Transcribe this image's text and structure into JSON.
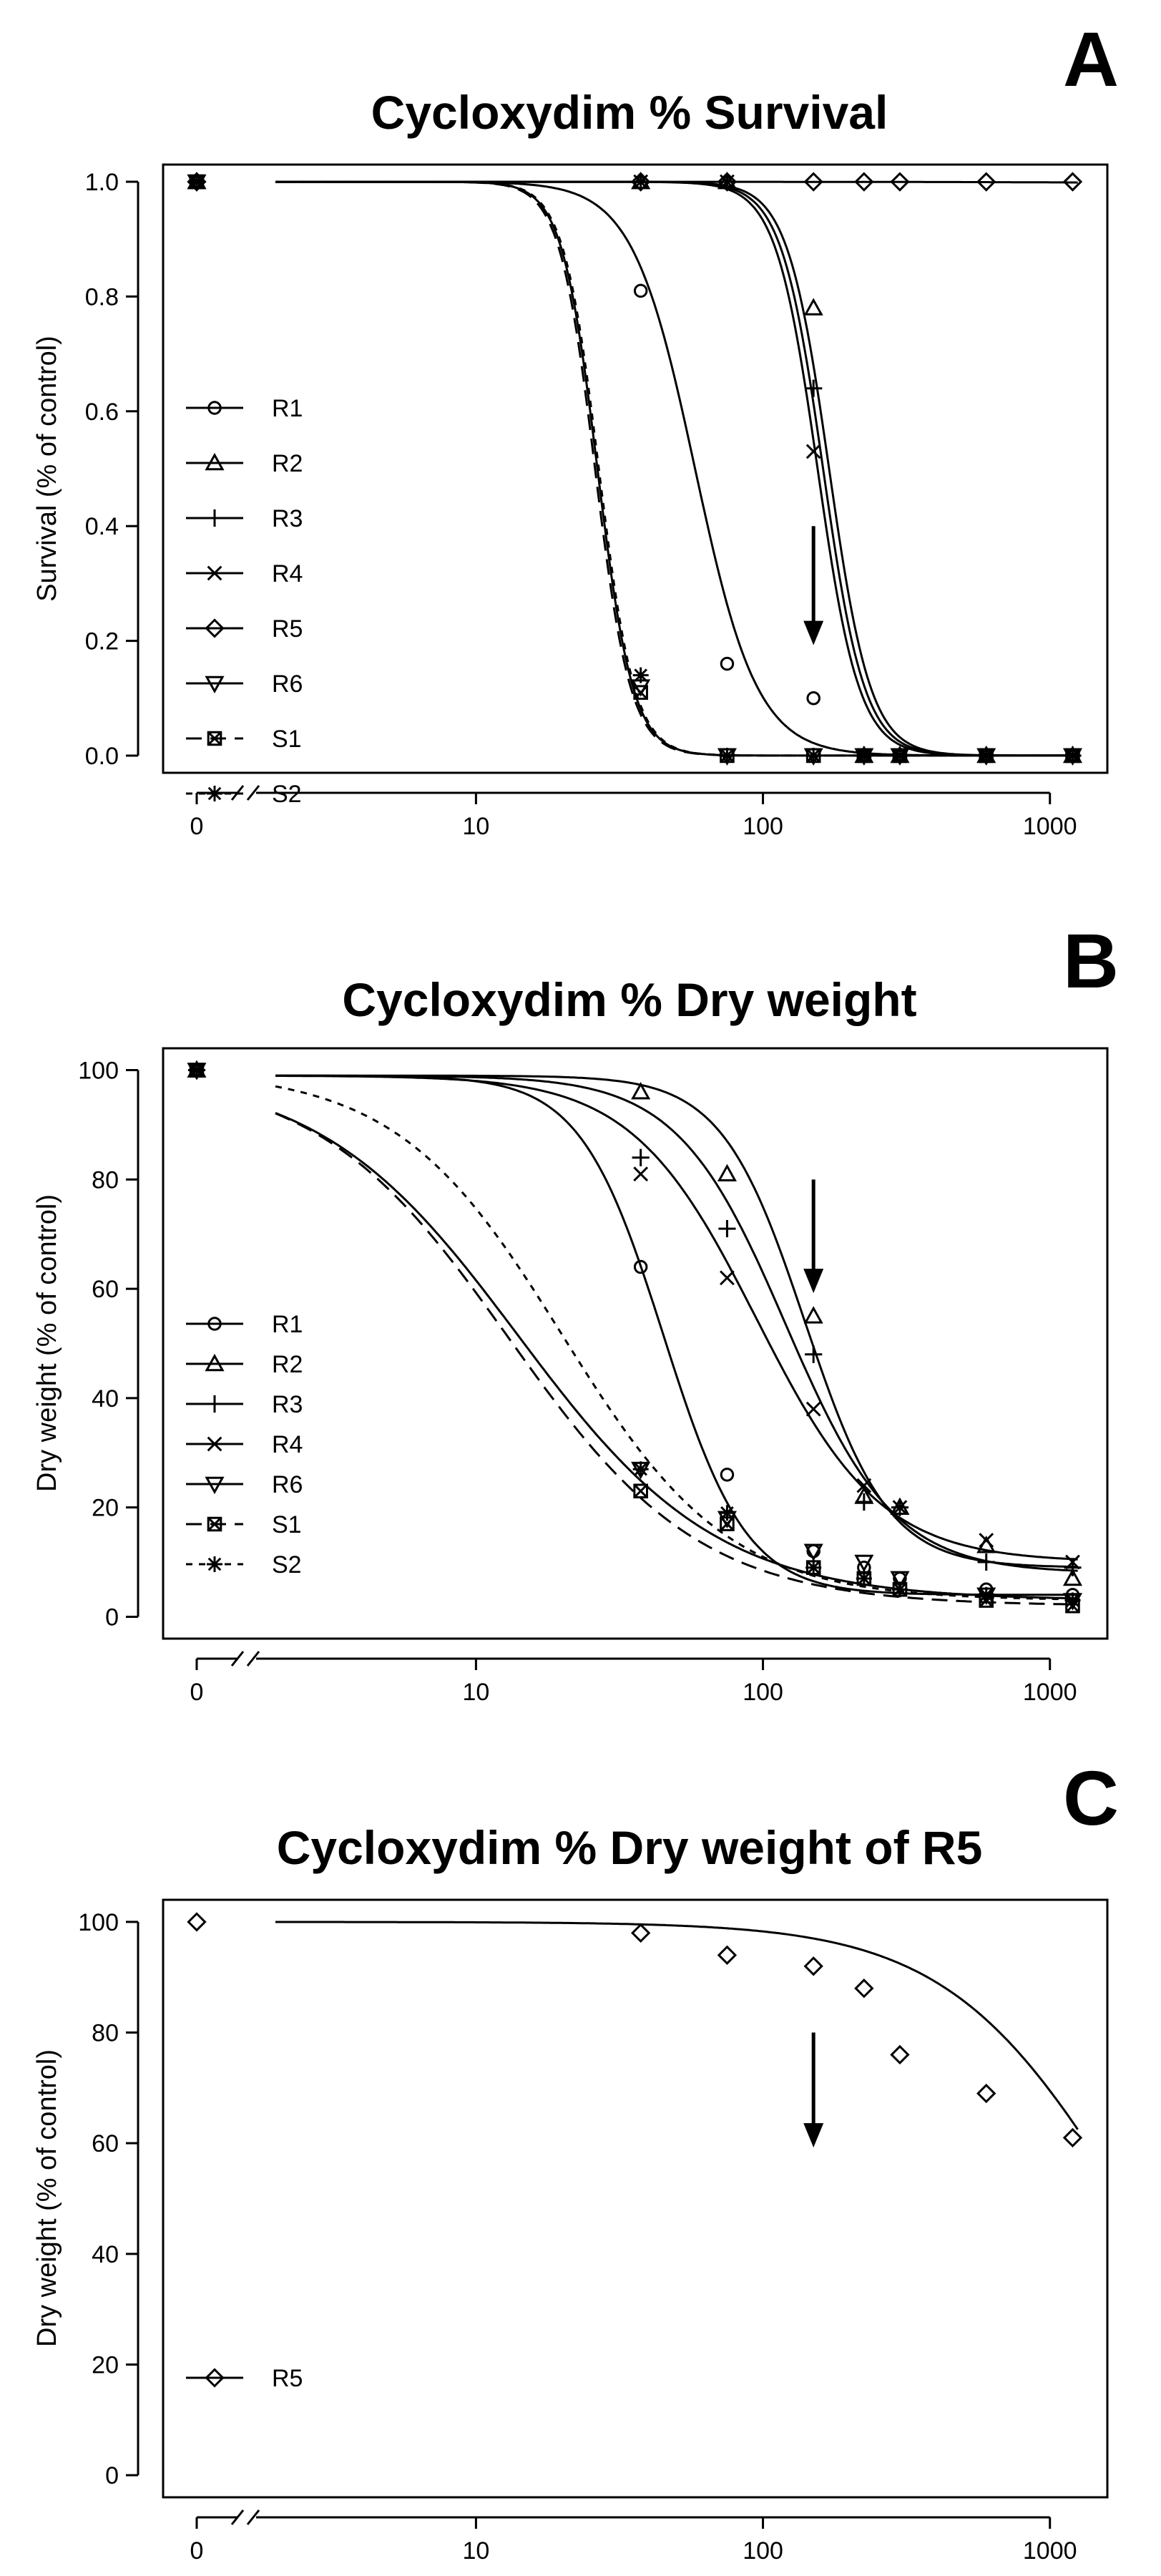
{
  "chart_data": [
    {
      "panel": "A",
      "type": "line",
      "title": "Cycloxydim % Survival",
      "xlabel": "",
      "ylabel": "Survival (% of control)",
      "xscale": "log",
      "x_ticks": [
        0,
        10,
        100,
        1000
      ],
      "x_tick_labels": [
        "0",
        "10",
        "100",
        "1000"
      ],
      "y_ticks": [
        0.0,
        0.2,
        0.4,
        0.6,
        0.8,
        1.0
      ],
      "y_tick_labels": [
        "0.0",
        "0.2",
        "0.4",
        "0.6",
        "0.8",
        "1.0"
      ],
      "ylim": [
        -0.03,
        1.03
      ],
      "x": [
        0,
        37.5,
        75,
        150,
        225,
        300,
        600,
        1200
      ],
      "control_value": 1.0,
      "arrow_x": 150,
      "legend_position": "left",
      "series": [
        {
          "name": "R1",
          "marker": "circle",
          "dash": "solid",
          "values": [
            1.0,
            0.81,
            0.16,
            0.1,
            0.0,
            0.0,
            0.0,
            0.0
          ],
          "fit": {
            "ed50": 58,
            "b": 4.0,
            "top": 1.0,
            "bottom": 0.0
          }
        },
        {
          "name": "R2",
          "marker": "triangle",
          "dash": "solid",
          "values": [
            1.0,
            1.0,
            1.0,
            0.78,
            0.0,
            0.0,
            0.0,
            0.0
          ],
          "fit": {
            "ed50": 170,
            "b": 6.0,
            "top": 1.0,
            "bottom": 0.0
          }
        },
        {
          "name": "R3",
          "marker": "plus",
          "dash": "solid",
          "values": [
            1.0,
            1.0,
            1.0,
            0.64,
            0.0,
            0.0,
            0.0,
            0.0
          ],
          "fit": {
            "ed50": 162,
            "b": 6.0,
            "top": 1.0,
            "bottom": 0.0
          }
        },
        {
          "name": "R4",
          "marker": "x",
          "dash": "solid",
          "values": [
            1.0,
            1.0,
            1.0,
            0.53,
            0.0,
            0.0,
            0.0,
            0.0
          ],
          "fit": {
            "ed50": 155,
            "b": 6.0,
            "top": 1.0,
            "bottom": 0.0
          }
        },
        {
          "name": "R5",
          "marker": "diamond",
          "dash": "solid",
          "values": [
            1.0,
            1.0,
            1.0,
            1.0,
            1.0,
            1.0,
            1.0,
            1.0
          ],
          "fit": {
            "ed50": 1000000,
            "b": 1.0,
            "top": 1.0,
            "bottom": 0.0
          }
        },
        {
          "name": "R6",
          "marker": "tri-down",
          "dash": "solid",
          "values": [
            1.0,
            0.12,
            0.0,
            0.0,
            0.0,
            0.0,
            0.0,
            0.0
          ],
          "fit": {
            "ed50": 26.5,
            "b": 7.0,
            "top": 1.0,
            "bottom": 0.0
          }
        },
        {
          "name": "S1",
          "marker": "square-x",
          "dash": "dashed",
          "values": [
            1.0,
            0.11,
            0.0,
            0.0,
            0.0,
            0.0,
            0.0,
            0.0
          ],
          "fit": {
            "ed50": 26.0,
            "b": 7.0,
            "top": 1.0,
            "bottom": 0.0
          }
        },
        {
          "name": "S2",
          "marker": "star",
          "dash": "dotted",
          "values": [
            1.0,
            0.14,
            0.0,
            0.0,
            0.0,
            0.0,
            0.0,
            0.0
          ],
          "fit": {
            "ed50": 26.8,
            "b": 7.0,
            "top": 1.0,
            "bottom": 0.0
          }
        }
      ]
    },
    {
      "panel": "B",
      "type": "line",
      "title": "Cycloxydim % Dry weight",
      "xlabel": "",
      "ylabel": "Dry weight (% of control)",
      "xscale": "log",
      "x_ticks": [
        0,
        10,
        100,
        1000
      ],
      "x_tick_labels": [
        "0",
        "10",
        "100",
        "1000"
      ],
      "y_ticks": [
        0,
        20,
        40,
        60,
        80,
        100
      ],
      "y_tick_labels": [
        "0",
        "20",
        "40",
        "60",
        "80",
        "100"
      ],
      "ylim": [
        -4,
        104
      ],
      "x": [
        0,
        37.5,
        75,
        150,
        225,
        300,
        600,
        1200
      ],
      "control_value": 100,
      "arrow_x": 150,
      "legend_position": "left",
      "series": [
        {
          "name": "R1",
          "marker": "circle",
          "dash": "solid",
          "values": [
            100,
            64,
            26,
            12,
            9,
            7,
            5,
            4
          ],
          "fit": {
            "ed50": 45,
            "b": 3.0,
            "top": 99,
            "bottom": 4
          }
        },
        {
          "name": "R2",
          "marker": "triangle",
          "dash": "solid",
          "values": [
            100,
            96,
            81,
            55,
            22,
            20,
            13,
            7
          ],
          "fit": {
            "ed50": 140,
            "b": 3.0,
            "top": 99,
            "bottom": 9
          }
        },
        {
          "name": "R3",
          "marker": "plus",
          "dash": "solid",
          "values": [
            100,
            84,
            71,
            48,
            21,
            20,
            10,
            9
          ],
          "fit": {
            "ed50": 120,
            "b": 2.3,
            "top": 99,
            "bottom": 8
          }
        },
        {
          "name": "R4",
          "marker": "x",
          "dash": "solid",
          "values": [
            100,
            81,
            62,
            38,
            24,
            20,
            14,
            10
          ],
          "fit": {
            "ed50": 95,
            "b": 2.0,
            "top": 99,
            "bottom": 10
          }
        },
        {
          "name": "R6",
          "marker": "tri-down",
          "dash": "solid",
          "values": [
            100,
            27,
            18,
            12,
            10,
            7,
            4,
            3
          ],
          "fit": {
            "ed50": 14,
            "b": 1.25,
            "top": 100,
            "bottom": 3
          }
        },
        {
          "name": "S1",
          "marker": "square-x",
          "dash": "dashed",
          "values": [
            100,
            23,
            17,
            9,
            7,
            5,
            3,
            2
          ],
          "fit": {
            "ed50": 13,
            "b": 1.3,
            "top": 100,
            "bottom": 2
          }
        },
        {
          "name": "S2",
          "marker": "star",
          "dash": "dotted",
          "values": [
            100,
            27,
            19,
            9,
            7,
            5,
            4,
            3
          ],
          "fit": {
            "ed50": 20,
            "b": 1.5,
            "top": 100,
            "bottom": 3
          }
        }
      ]
    },
    {
      "panel": "C",
      "type": "line",
      "title": "Cycloxydim % Dry weight of R5",
      "xlabel": "",
      "ylabel": "Dry weight (% of control)",
      "xscale": "log",
      "x_ticks": [
        0,
        10,
        100,
        1000
      ],
      "x_tick_labels": [
        "0",
        "10",
        "100",
        "1000"
      ],
      "y_ticks": [
        0,
        20,
        40,
        60,
        80,
        100
      ],
      "y_tick_labels": [
        "0",
        "20",
        "40",
        "60",
        "80",
        "100"
      ],
      "ylim": [
        -4,
        104
      ],
      "x": [
        0,
        37.5,
        75,
        150,
        225,
        300,
        600,
        1200
      ],
      "control_value": 100,
      "arrow_x": 150,
      "legend_position": "bottom-left",
      "series": [
        {
          "name": "R5",
          "marker": "diamond",
          "dash": "solid",
          "values": [
            100,
            98,
            94,
            92,
            88,
            76,
            69,
            61
          ],
          "fit": {
            "ed50": 1800,
            "b": 1.4,
            "top": 100,
            "bottom": 0
          }
        }
      ]
    }
  ]
}
